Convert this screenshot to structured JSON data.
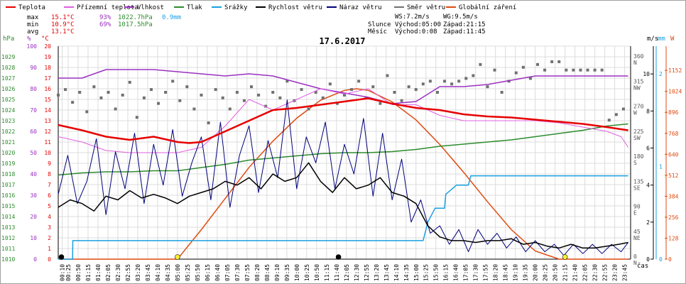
{
  "chart_data": {
    "type": "line",
    "title": "17.6.2017",
    "legend": [
      {
        "label": "Teplota",
        "color": "#e60000"
      },
      {
        "label": "Přízemní teplota",
        "color": "#e060e0"
      },
      {
        "label": "Vlhkost",
        "color": "#9b30c0"
      },
      {
        "label": "Tlak",
        "color": "#2e8b2e"
      },
      {
        "label": "Srážky",
        "color": "#1aa0e0"
      },
      {
        "label": "Rychlost větru",
        "color": "#000000"
      },
      {
        "label": "Náraz větru",
        "color": "#00007a"
      },
      {
        "label": "Směr větru",
        "color": "#707070"
      },
      {
        "label": "Globální záření",
        "color": "#e04a10"
      }
    ],
    "stats": [
      {
        "label": "max",
        "temp": "15.1°C",
        "hum": "93%",
        "press": "1022.7hPa",
        "rain": "0.9mm"
      },
      {
        "label": "min",
        "temp": "10.9°C",
        "hum": "69%",
        "press": "1017.5hPa",
        "rain": ""
      },
      {
        "label": "avg",
        "temp": "13.1°C",
        "hum": "",
        "press": "",
        "rain": ""
      }
    ],
    "wind_summary": {
      "ws": "WS:7.2m/s",
      "wg": "WG:9.5m/s"
    },
    "sun": {
      "label": "Slunce",
      "rise": "Východ:05:00",
      "set": "Západ:21:15"
    },
    "moon": {
      "label": "Měsíc",
      "rise": "Východ:0:08",
      "set": "Západ:11:45"
    },
    "axes": {
      "hpa_title": "hPa",
      "pct_title": "%",
      "temp_title": "°C",
      "ms_title": "m/s",
      "mm_title": "mm",
      "w_title": "W",
      "hpa_ticks": [
        "1010",
        "1011",
        "1012",
        "1013",
        "1014",
        "1015",
        "1016",
        "1017",
        "1018",
        "1019",
        "1020",
        "1021",
        "1022",
        "1023",
        "1024",
        "1025",
        "1026",
        "1027",
        "1028",
        "1029"
      ],
      "pct_ticks": [
        "0",
        "10",
        "20",
        "30",
        "40",
        "50",
        "60",
        "70",
        "80",
        "90",
        "100"
      ],
      "temp_ticks": [
        "0",
        "1",
        "2",
        "3",
        "4",
        "5",
        "6",
        "7",
        "8",
        "9",
        "10",
        "11",
        "12",
        "13",
        "14",
        "15",
        "16",
        "17",
        "18",
        "19",
        "20"
      ],
      "dir_ticks": [
        [
          "0",
          "N"
        ],
        [
          "45",
          "NE"
        ],
        [
          "90",
          "E"
        ],
        [
          "135",
          "SE"
        ],
        [
          "180",
          "S"
        ],
        [
          "225",
          "SW"
        ],
        [
          "270",
          "W"
        ],
        [
          "315",
          "NW"
        ],
        [
          "360",
          "N"
        ]
      ],
      "ms_ticks": [
        "0",
        "2",
        "4",
        "6",
        "8",
        "10"
      ],
      "mm_ticks": [
        "0",
        "1",
        "2"
      ],
      "w_ticks": [
        "0",
        "128",
        "256",
        "384",
        "512",
        "640",
        "768",
        "896",
        "1024",
        "1152"
      ],
      "x_title": "čas",
      "x_labels": [
        "00:10",
        "00:25",
        "00:50",
        "01:15",
        "01:40",
        "02:05",
        "02:30",
        "02:55",
        "03:20",
        "03:45",
        "04:10",
        "04:35",
        "05:00",
        "05:25",
        "05:50",
        "06:15",
        "06:40",
        "07:05",
        "07:30",
        "07:55",
        "08:20",
        "08:45",
        "09:10",
        "09:35",
        "10:00",
        "10:25",
        "10:50",
        "11:15",
        "11:40",
        "12:05",
        "12:30",
        "12:55",
        "13:20",
        "13:45",
        "14:10",
        "14:35",
        "15:00",
        "15:25",
        "15:50",
        "16:15",
        "16:40",
        "17:05",
        "17:30",
        "17:55",
        "18:20",
        "18:45",
        "19:10",
        "19:35",
        "20:00",
        "20:25",
        "20:50",
        "21:15",
        "21:40",
        "22:05",
        "22:30",
        "22:55",
        "23:20",
        "23:45"
      ]
    },
    "ylim": {
      "temp": [
        0,
        20
      ],
      "humidity": [
        0,
        100
      ],
      "pressure": [
        1010,
        1030
      ],
      "wind": [
        0,
        11.5
      ],
      "direction": [
        0,
        383
      ],
      "rain": [
        0,
        2.3
      ],
      "radiation": [
        0,
        1300
      ]
    },
    "series": [
      {
        "name": "Teplota",
        "unit": "°C",
        "color": "#e60000",
        "x": [
          0,
          1,
          2,
          3,
          4,
          5,
          5.5,
          6,
          7,
          8,
          9,
          10,
          11,
          12,
          13,
          14,
          15,
          16,
          17,
          18,
          19,
          20,
          21,
          22,
          23,
          23.9
        ],
        "values": [
          12.6,
          12.1,
          11.5,
          11.2,
          11.5,
          11.0,
          10.9,
          11.0,
          12.0,
          13.0,
          14.0,
          14.2,
          14.5,
          14.8,
          15.1,
          14.6,
          14.2,
          14.0,
          13.6,
          13.4,
          13.3,
          13.1,
          12.9,
          12.7,
          12.4,
          12.1
        ]
      },
      {
        "name": "Přízemní teplota",
        "unit": "°C",
        "color": "#e060e0",
        "x": [
          0,
          1,
          2,
          3,
          4,
          5,
          6,
          7,
          8,
          9,
          10,
          11,
          12,
          13,
          14,
          15,
          16,
          17,
          18,
          19,
          20,
          21,
          22,
          23,
          23.6,
          23.9
        ],
        "values": [
          11.5,
          11.0,
          10.2,
          10.0,
          10.0,
          10.0,
          10.5,
          12.5,
          15.0,
          14.0,
          15.0,
          16.0,
          15.5,
          16.0,
          14.5,
          14.5,
          13.5,
          13.0,
          13.0,
          13.0,
          13.0,
          12.8,
          12.4,
          12.0,
          11.5,
          10.5
        ]
      },
      {
        "name": "Vlhkost",
        "unit": "%",
        "color": "#9b30c0",
        "x": [
          0,
          1,
          2,
          3,
          4,
          5,
          6,
          7,
          8,
          9,
          10,
          11,
          12,
          13,
          14,
          15,
          16,
          17,
          18,
          19,
          20,
          21,
          22,
          23,
          23.9
        ],
        "values": [
          85,
          85,
          89,
          89,
          89,
          88,
          87,
          86,
          87,
          86,
          83,
          80,
          78,
          76,
          73,
          74,
          81,
          81,
          82,
          84,
          86,
          86,
          86,
          86,
          86
        ]
      },
      {
        "name": "Tlak",
        "unit": "hPa",
        "color": "#2e8b2e",
        "x": [
          0,
          1,
          2,
          3,
          4,
          5,
          6,
          7,
          8,
          9,
          10,
          11,
          12,
          13,
          14,
          15,
          16,
          17,
          18,
          19,
          20,
          21,
          22,
          23,
          23.9
        ],
        "values": [
          1017.9,
          1018.1,
          1018.2,
          1018.2,
          1018.3,
          1018.3,
          1018.6,
          1018.9,
          1019.3,
          1019.5,
          1019.7,
          1019.9,
          1020.0,
          1020.0,
          1020.1,
          1020.3,
          1020.6,
          1020.8,
          1021.0,
          1021.2,
          1021.5,
          1021.8,
          1022.1,
          1022.5,
          1022.7
        ]
      },
      {
        "name": "Srážky",
        "unit": "mm",
        "color": "#1aa0e0",
        "x": [
          0,
          0.6,
          0.61,
          15.3,
          15.5,
          15.8,
          16.2,
          16.25,
          16.7,
          17.2,
          17.3,
          23.9
        ],
        "values": [
          0,
          0,
          0.2,
          0.2,
          0.4,
          0.55,
          0.55,
          0.7,
          0.8,
          0.8,
          0.9,
          0.9
        ]
      },
      {
        "name": "Rychlost větru",
        "unit": "m/s",
        "color": "#000000",
        "x": [
          0,
          0.5,
          1,
          1.5,
          2,
          2.5,
          3,
          3.5,
          4,
          4.5,
          5,
          5.5,
          6,
          6.5,
          7,
          7.5,
          8,
          8.5,
          9,
          9.5,
          10,
          10.5,
          11,
          11.5,
          12,
          12.5,
          13,
          13.5,
          14,
          14.5,
          15,
          15.5,
          16,
          16.5,
          17,
          17.5,
          18,
          18.5,
          19,
          19.5,
          20,
          20.5,
          21,
          21.5,
          22,
          22.5,
          23,
          23.5,
          23.9
        ],
        "values": [
          2.8,
          3.2,
          3.0,
          2.6,
          3.4,
          3.2,
          3.7,
          3.3,
          3.5,
          3.3,
          3.0,
          3.4,
          3.6,
          3.8,
          4.2,
          4.0,
          4.4,
          3.8,
          4.6,
          4.2,
          4.4,
          5.2,
          4.2,
          3.6,
          4.4,
          3.8,
          4.0,
          4.4,
          3.6,
          3.4,
          3.0,
          1.8,
          1.2,
          1.0,
          1.0,
          0.9,
          1.0,
          1.0,
          1.1,
          0.8,
          0.9,
          0.7,
          0.6,
          0.8,
          0.6,
          0.6,
          0.7,
          0.8,
          0.9
        ]
      },
      {
        "name": "Náraz větru",
        "unit": "m/s",
        "color": "#00007a",
        "x": [
          0,
          0.4,
          0.8,
          1.2,
          1.6,
          2,
          2.4,
          2.8,
          3.2,
          3.6,
          4,
          4.4,
          4.8,
          5.2,
          5.6,
          6,
          6.4,
          6.8,
          7.2,
          7.6,
          8,
          8.4,
          8.8,
          9.2,
          9.6,
          10,
          10.4,
          10.8,
          11.2,
          11.6,
          12,
          12.4,
          12.8,
          13.2,
          13.6,
          14,
          14.4,
          14.8,
          15.2,
          15.6,
          16,
          16.4,
          16.8,
          17.2,
          17.6,
          18,
          18.4,
          18.8,
          19.2,
          19.6,
          20,
          20.4,
          20.8,
          21.2,
          21.6,
          22,
          22.4,
          22.8,
          23.2,
          23.6,
          23.9
        ],
        "values": [
          3.5,
          5.6,
          3.0,
          4.2,
          6.5,
          2.4,
          5.8,
          3.8,
          6.8,
          3.0,
          6.2,
          4.0,
          7.0,
          3.4,
          5.2,
          6.6,
          3.2,
          7.4,
          2.8,
          5.6,
          7.2,
          3.6,
          6.4,
          4.4,
          8.6,
          3.8,
          6.6,
          5.2,
          7.4,
          3.8,
          6.2,
          4.6,
          7.6,
          3.4,
          6.8,
          3.2,
          5.4,
          2.0,
          3.2,
          1.4,
          1.8,
          0.8,
          1.6,
          0.4,
          1.6,
          0.8,
          1.4,
          0.6,
          1.2,
          0.4,
          1.0,
          0.4,
          0.8,
          0.2,
          0.8,
          0.3,
          0.8,
          0.3,
          0.8,
          0.4,
          0.9
        ]
      },
      {
        "name": "Směr větru",
        "unit": "°",
        "color": "#707070",
        "x": [
          0,
          0.3,
          0.6,
          0.9,
          1.2,
          1.5,
          1.8,
          2.1,
          2.4,
          2.7,
          3,
          3.3,
          3.6,
          3.9,
          4.2,
          4.5,
          4.8,
          5.1,
          5.4,
          5.7,
          6,
          6.3,
          6.6,
          6.9,
          7.2,
          7.5,
          7.8,
          8.1,
          8.4,
          8.7,
          9,
          9.3,
          9.6,
          9.9,
          10.2,
          10.5,
          10.8,
          11.1,
          11.4,
          11.7,
          12,
          12.3,
          12.6,
          12.9,
          13.2,
          13.5,
          13.8,
          14.1,
          14.4,
          14.7,
          15,
          15.3,
          15.6,
          15.9,
          16.2,
          16.5,
          16.8,
          17.1,
          17.4,
          17.7,
          18,
          18.3,
          18.6,
          18.9,
          19.2,
          19.5,
          19.8,
          20.1,
          20.4,
          20.7,
          21,
          21.3,
          21.6,
          21.9,
          22.2,
          22.5,
          22.8,
          23.1,
          23.4,
          23.7
        ],
        "values": [
          295,
          305,
          282,
          300,
          265,
          310,
          290,
          300,
          270,
          295,
          318,
          255,
          290,
          305,
          280,
          300,
          320,
          285,
          310,
          270,
          295,
          245,
          305,
          290,
          270,
          300,
          285,
          310,
          295,
          275,
          300,
          290,
          320,
          285,
          305,
          270,
          300,
          290,
          315,
          280,
          295,
          305,
          320,
          290,
          310,
          280,
          330,
          300,
          285,
          310,
          305,
          315,
          320,
          300,
          320,
          315,
          320,
          325,
          330,
          350,
          310,
          340,
          300,
          320,
          335,
          345,
          325,
          350,
          340,
          355,
          355,
          340,
          340,
          340,
          340,
          340,
          340,
          250,
          260,
          270
        ]
      },
      {
        "name": "Globální záření",
        "unit": "W/m²",
        "color": "#e04a10",
        "x": [
          0,
          5.0,
          5.5,
          6,
          7,
          8,
          9,
          10,
          11,
          12,
          12.5,
          13,
          14,
          15,
          16,
          17,
          18,
          19,
          20,
          21,
          21.2,
          23.9
        ],
        "values": [
          0,
          0,
          90,
          180,
          370,
          560,
          720,
          860,
          970,
          1030,
          1040,
          1030,
          960,
          850,
          700,
          530,
          350,
          180,
          50,
          0,
          0,
          0
        ]
      }
    ]
  }
}
